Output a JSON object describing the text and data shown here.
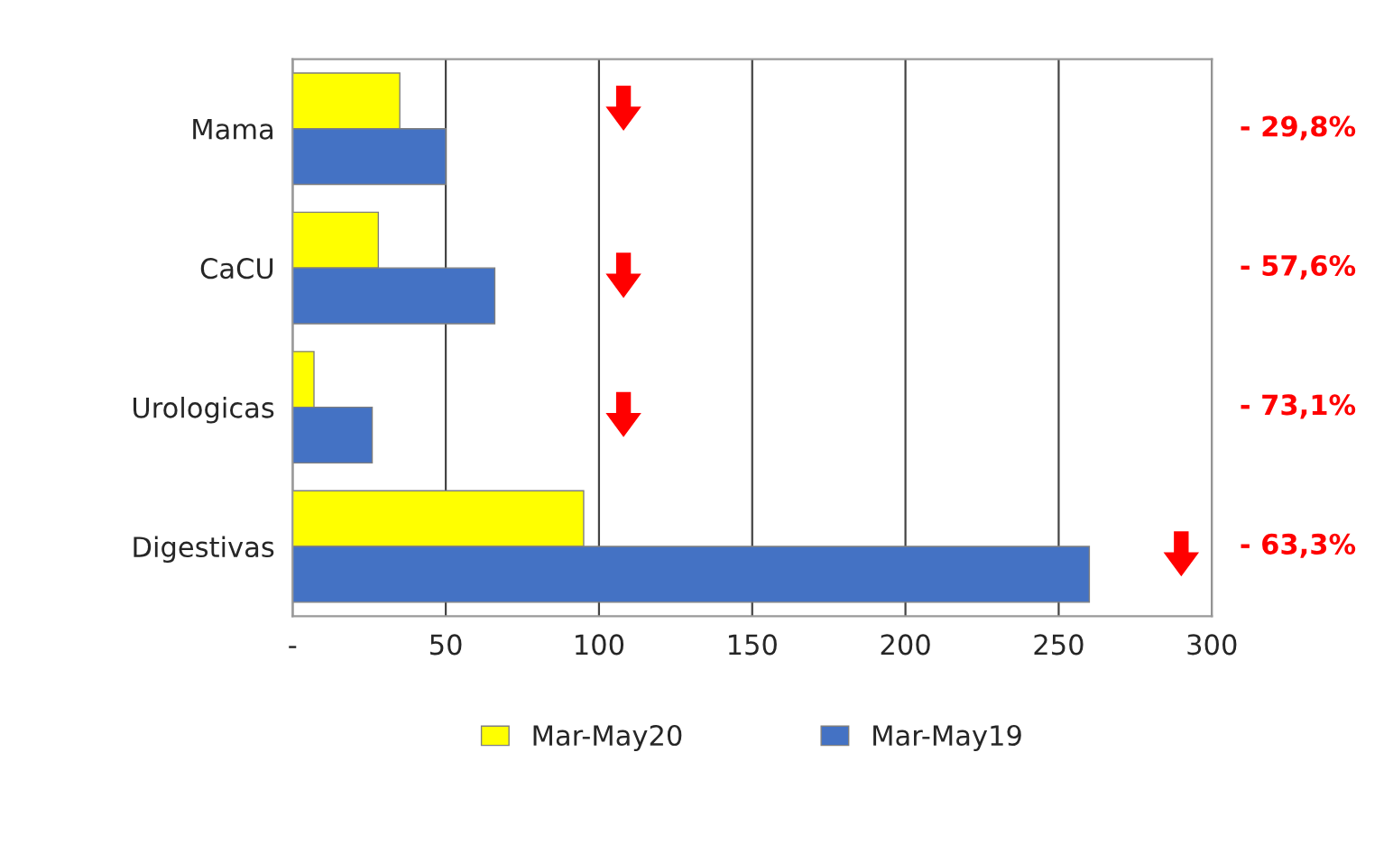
{
  "chart_data": {
    "type": "bar",
    "orientation": "horizontal",
    "categories": [
      "Mama",
      "CaCU",
      "Urologicas",
      "Digestivas"
    ],
    "series": [
      {
        "name": "Mar-May20",
        "color": "#ffff00",
        "values": [
          35,
          28,
          7,
          95
        ]
      },
      {
        "name": "Mar-May19",
        "color": "#4472c4",
        "values": [
          50,
          66,
          26,
          260
        ]
      }
    ],
    "xlim": [
      0,
      300
    ],
    "xticks": [
      {
        "value": 0,
        "label": "-"
      },
      50,
      100,
      150,
      200,
      250,
      300
    ],
    "grid": "x",
    "legend": "bottom",
    "annotations": [
      "- 29,8%",
      "- 57,6%",
      "- 73,1%",
      "- 63,3%"
    ]
  }
}
